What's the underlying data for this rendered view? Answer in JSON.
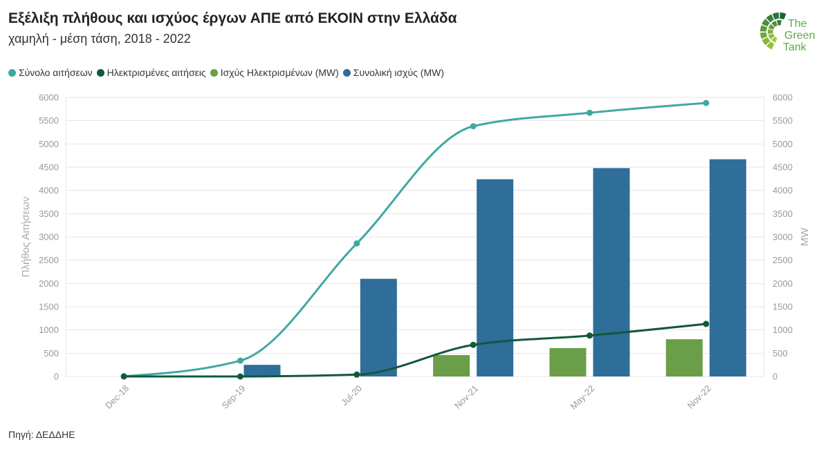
{
  "chart_data": {
    "type": "bar",
    "title": "Εξέλιξη πλήθους και ισχύος έργων ΑΠΕ από ΕΚΟΙΝ στην Ελλάδα",
    "subtitle": "χαμηλή - μέση τάση, 2018 - 2022",
    "source": "Πηγή: ΔΕΔΔΗΕ",
    "categories": [
      "Dec-18",
      "Sep-19",
      "Jul-20",
      "Nov-21",
      "May-22",
      "Nov-22"
    ],
    "ylabel": "Πλήθος Αιτήσεων",
    "y2label": "MW",
    "ylim": [
      0,
      6000
    ],
    "y2lim": [
      0,
      6000
    ],
    "yticks": [
      0,
      500,
      1000,
      1500,
      2000,
      2500,
      3000,
      3500,
      4000,
      4500,
      5000,
      5500,
      6000
    ],
    "y2ticks": [
      0,
      500,
      1000,
      1500,
      2000,
      2500,
      3000,
      3500,
      4000,
      4500,
      5000,
      5500,
      6000
    ],
    "grid": true,
    "legend_position": "top-left",
    "series": [
      {
        "name": "Σύνολο αιτήσεων",
        "type": "line",
        "axis": "left",
        "color": "#3fa8a3",
        "values": [
          5,
          340,
          2860,
          5380,
          5670,
          5880
        ]
      },
      {
        "name": "Ηλεκτρισμένες αιτήσεις",
        "type": "line",
        "axis": "left",
        "color": "#0f5a38",
        "values": [
          0,
          0,
          40,
          680,
          880,
          1130
        ]
      },
      {
        "name": "Ισχύς Ηλεκτρισμένων (MW)",
        "type": "bar",
        "axis": "right",
        "color": "#6b9e48",
        "values": [
          0,
          0,
          0,
          460,
          610,
          800
        ]
      },
      {
        "name": "Συνολική ισχύς (MW)",
        "type": "bar",
        "axis": "right",
        "color": "#2f6e99",
        "values": [
          0,
          250,
          2100,
          4240,
          4480,
          4670
        ]
      }
    ]
  },
  "logo": {
    "line1": "The",
    "line2": "Green",
    "line3": "Tank",
    "text_color": "#5cab47",
    "tile_color_dark": "#17663a",
    "tile_color_light": "#a6cc3b"
  }
}
